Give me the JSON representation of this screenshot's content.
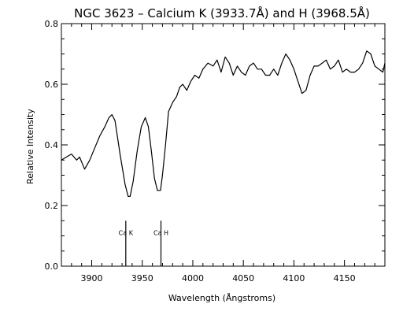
{
  "chart_data": {
    "type": "line",
    "title": "NGC 3623 – Calcium K (3933.7Å) and H (3968.5Å)",
    "xlabel": "Wavelength (Ångstroms)",
    "ylabel": "Relative Intensity",
    "xlim": [
      3870,
      4190
    ],
    "ylim": [
      0.0,
      0.8
    ],
    "grid": false,
    "xticks": [
      3900,
      3950,
      4000,
      4050,
      4100,
      4150
    ],
    "yticks": [
      0.0,
      0.2,
      0.4,
      0.6,
      0.8
    ],
    "xtick_labels": [
      "3900",
      "3950",
      "4000",
      "4050",
      "4100",
      "4150"
    ],
    "ytick_labels": [
      "0.0",
      "0.2",
      "0.4",
      "0.6",
      "0.8"
    ],
    "series": [
      {
        "x": [
          3870,
          3875,
          3880,
          3885,
          3888,
          3893,
          3898,
          3903,
          3908,
          3913,
          3917,
          3920,
          3923,
          3928,
          3933,
          3936,
          3938,
          3941,
          3945,
          3949,
          3953,
          3956,
          3959,
          3962,
          3965,
          3968,
          3970,
          3973,
          3976,
          3980,
          3984,
          3987,
          3990,
          3994,
          3998,
          4002,
          4006,
          4010,
          4015,
          4020,
          4024,
          4028,
          4032,
          4036,
          4040,
          4044,
          4048,
          4052,
          4056,
          4060,
          4064,
          4068,
          4072,
          4076,
          4080,
          4084,
          4088,
          4092,
          4096,
          4100,
          4104,
          4108,
          4112,
          4116,
          4120,
          4124,
          4128,
          4132,
          4136,
          4140,
          4144,
          4148,
          4152,
          4156,
          4160,
          4164,
          4168,
          4172,
          4176,
          4180,
          4184,
          4188,
          4190
        ],
        "y": [
          0.35,
          0.36,
          0.37,
          0.35,
          0.36,
          0.32,
          0.35,
          0.39,
          0.43,
          0.46,
          0.49,
          0.5,
          0.48,
          0.37,
          0.27,
          0.23,
          0.23,
          0.28,
          0.38,
          0.46,
          0.49,
          0.46,
          0.38,
          0.29,
          0.25,
          0.25,
          0.3,
          0.4,
          0.51,
          0.54,
          0.56,
          0.59,
          0.6,
          0.58,
          0.61,
          0.63,
          0.62,
          0.65,
          0.67,
          0.66,
          0.68,
          0.64,
          0.69,
          0.67,
          0.63,
          0.66,
          0.64,
          0.63,
          0.66,
          0.67,
          0.65,
          0.65,
          0.63,
          0.63,
          0.65,
          0.63,
          0.67,
          0.7,
          0.68,
          0.65,
          0.61,
          0.57,
          0.58,
          0.63,
          0.66,
          0.66,
          0.67,
          0.68,
          0.65,
          0.66,
          0.68,
          0.64,
          0.65,
          0.64,
          0.64,
          0.65,
          0.67,
          0.71,
          0.7,
          0.66,
          0.65,
          0.64,
          0.67
        ]
      }
    ],
    "annotations": [
      {
        "label": "Ca K",
        "x": 3933.7,
        "y_from": 0.0,
        "y_to": 0.15
      },
      {
        "label": "Ca H",
        "x": 3968.5,
        "y_from": 0.0,
        "y_to": 0.15
      }
    ],
    "line_color": "#000000",
    "background": "#ffffff"
  }
}
